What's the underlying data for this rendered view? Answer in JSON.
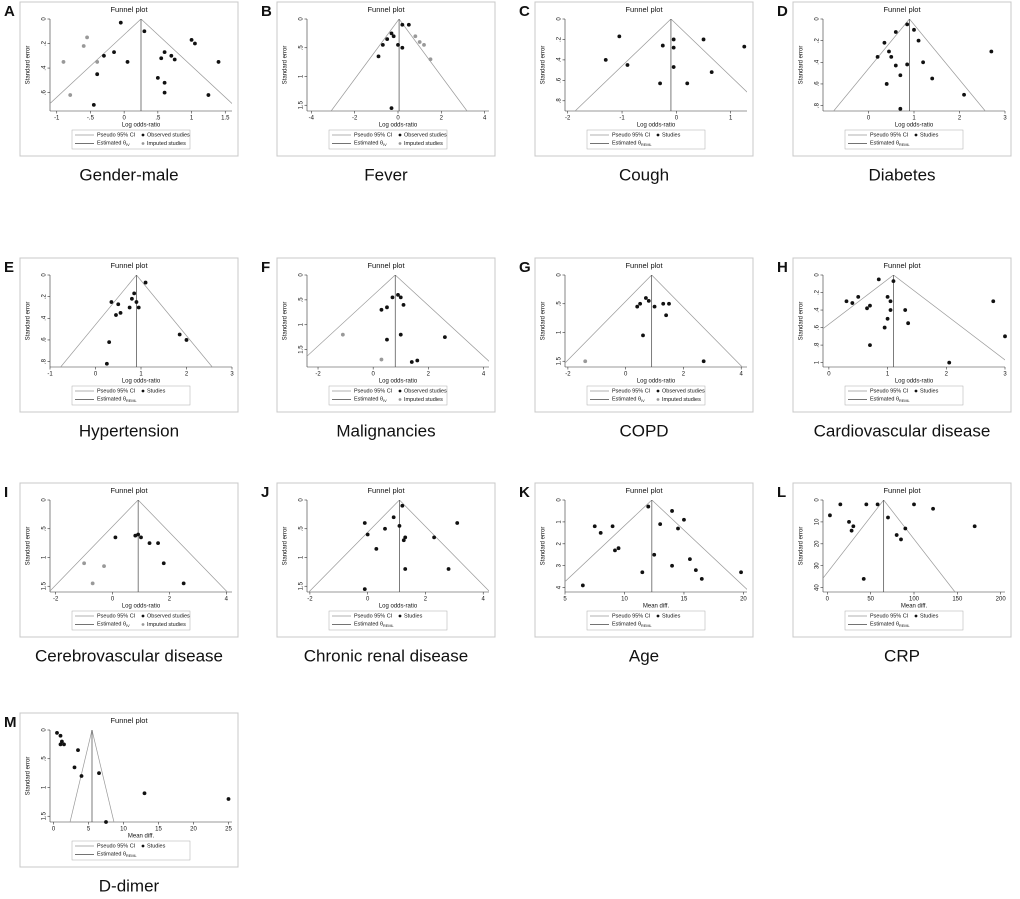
{
  "chart_data": [
    {
      "type": "scatter",
      "panel": "A",
      "caption": "Gender-male",
      "title": "Funnel plot",
      "xlabel": "Log odds-ratio",
      "ylabel": "Standard error",
      "xlim": [
        -1.1,
        1.6
      ],
      "ylim": [
        0,
        0.75
      ],
      "y_inverted": true,
      "xticks": [
        -1,
        {
          "value": -0.5,
          "label": "-.5"
        },
        0,
        {
          "value": 0.5,
          "label": ".5"
        },
        1,
        1.5
      ],
      "yticks": [
        0,
        {
          "value": 0.2,
          "label": ".2"
        },
        {
          "value": 0.4,
          "label": ".4"
        },
        {
          "value": 0.6,
          "label": ".6"
        }
      ],
      "estimate": 0.25,
      "legend": {
        "ci": "Pseudo 95% CI",
        "estimate": "Estimated θ",
        "estimate_subscript": "IV"
      },
      "series": [
        {
          "name": "Observed studies",
          "color": "#111111",
          "x": [
            -0.05,
            0.3,
            -0.15,
            -0.3,
            0.05,
            0.6,
            0.55,
            0.7,
            0.75,
            0.5,
            0.6,
            0.6,
            1.0,
            1.05,
            1.4,
            1.25,
            -0.4,
            -0.45
          ],
          "values": [
            0.03,
            0.1,
            0.27,
            0.3,
            0.35,
            0.27,
            0.32,
            0.3,
            0.33,
            0.48,
            0.52,
            0.6,
            0.17,
            0.2,
            0.35,
            0.62,
            0.45,
            0.7
          ]
        },
        {
          "name": "Imputed studies",
          "color": "#999999",
          "x": [
            -0.9,
            -0.55,
            -0.6,
            -0.4,
            -0.8
          ],
          "values": [
            0.35,
            0.15,
            0.22,
            0.35,
            0.62
          ]
        }
      ]
    },
    {
      "type": "scatter",
      "panel": "B",
      "caption": "Fever",
      "title": "Funnel plot",
      "xlabel": "Log odds-ratio",
      "ylabel": "Standard error",
      "xlim": [
        -4.2,
        4.2
      ],
      "ylim": [
        0,
        1.6
      ],
      "y_inverted": true,
      "xticks": [
        -4,
        -2,
        0,
        2,
        4
      ],
      "yticks": [
        0,
        {
          "value": 0.5,
          "label": ".5"
        },
        1,
        1.5
      ],
      "estimate": 0.05,
      "legend": {
        "ci": "Pseudo 95% CI",
        "estimate": "Estimated θ",
        "estimate_subscript": "IV"
      },
      "series": [
        {
          "name": "Observed studies",
          "color": "#111111",
          "x": [
            -0.9,
            -0.7,
            -0.5,
            -0.3,
            -0.2,
            0.2,
            0.5,
            0.0,
            0.2,
            -0.3
          ],
          "values": [
            0.65,
            0.45,
            0.35,
            0.25,
            0.3,
            0.1,
            0.1,
            0.45,
            0.5,
            1.55
          ]
        },
        {
          "name": "Imputed studies",
          "color": "#999999",
          "x": [
            0.8,
            1.0,
            1.2,
            1.5
          ],
          "values": [
            0.3,
            0.4,
            0.45,
            0.7
          ]
        }
      ]
    },
    {
      "type": "scatter",
      "panel": "C",
      "caption": "Cough",
      "title": "Funnel plot",
      "xlabel": "Log odds-ratio",
      "ylabel": "Standard error",
      "xlim": [
        -2.05,
        1.3
      ],
      "ylim": [
        0,
        0.9
      ],
      "y_inverted": true,
      "xticks": [
        -2,
        -1,
        0,
        1
      ],
      "yticks": [
        0,
        {
          "value": 0.2,
          "label": ".2"
        },
        {
          "value": 0.4,
          "label": ".4"
        },
        {
          "value": 0.6,
          "label": ".6"
        },
        {
          "value": 0.8,
          "label": ".8"
        }
      ],
      "estimate": -0.1,
      "legend": {
        "ci": "Pseudo 95% CI",
        "estimate": "Estimated θ",
        "estimate_subscript": "REML"
      },
      "series": [
        {
          "name": "Studies",
          "color": "#111111",
          "x": [
            -1.05,
            -1.3,
            -0.9,
            -0.25,
            -0.05,
            -0.05,
            0.5,
            1.25,
            -0.05,
            0.65,
            0.2,
            -0.3
          ],
          "values": [
            0.17,
            0.4,
            0.45,
            0.26,
            0.2,
            0.28,
            0.2,
            0.27,
            0.47,
            0.52,
            0.63,
            0.63
          ]
        }
      ]
    },
    {
      "type": "scatter",
      "panel": "D",
      "caption": "Diabetes",
      "title": "Funnel plot",
      "xlabel": "Log odds-ratio",
      "ylabel": "Standard error",
      "xlim": [
        -1,
        3
      ],
      "ylim": [
        0,
        0.85
      ],
      "y_inverted": true,
      "xticks": [
        0,
        1,
        2,
        3
      ],
      "yticks": [
        0,
        {
          "value": 0.2,
          "label": ".2"
        },
        {
          "value": 0.4,
          "label": ".4"
        },
        {
          "value": 0.6,
          "label": ".6"
        },
        {
          "value": 0.8,
          "label": ".8"
        }
      ],
      "estimate": 0.9,
      "legend": {
        "ci": "Pseudo 95% CI",
        "estimate": "Estimated θ",
        "estimate_subscript": "REML"
      },
      "series": [
        {
          "name": "Studies",
          "color": "#111111",
          "x": [
            0.85,
            0.6,
            1.0,
            0.35,
            0.45,
            0.5,
            0.2,
            0.6,
            0.7,
            0.85,
            0.4,
            1.2,
            1.4,
            1.1,
            2.7,
            2.1,
            0.7
          ],
          "values": [
            0.05,
            0.12,
            0.1,
            0.22,
            0.3,
            0.35,
            0.35,
            0.43,
            0.52,
            0.42,
            0.6,
            0.4,
            0.55,
            0.2,
            0.3,
            0.7,
            0.83
          ]
        }
      ]
    },
    {
      "type": "scatter",
      "panel": "E",
      "caption": "Hypertension",
      "title": "Funnel plot",
      "xlabel": "Log odds-ratio",
      "ylabel": "Standard error",
      "xlim": [
        -1,
        3
      ],
      "ylim": [
        0,
        0.85
      ],
      "y_inverted": true,
      "xticks": [
        -1,
        0,
        1,
        2,
        3
      ],
      "yticks": [
        0,
        {
          "value": 0.2,
          "label": ".2"
        },
        {
          "value": 0.4,
          "label": ".4"
        },
        {
          "value": 0.6,
          "label": ".6"
        },
        {
          "value": 0.8,
          "label": ".8"
        }
      ],
      "estimate": 0.9,
      "legend": {
        "ci": "Pseudo 95% CI",
        "estimate": "Estimated θ",
        "estimate_subscript": "REML"
      },
      "series": [
        {
          "name": "Studies",
          "color": "#111111",
          "x": [
            1.1,
            0.85,
            0.8,
            0.35,
            0.5,
            0.55,
            0.45,
            0.75,
            0.95,
            0.9,
            0.3,
            1.85,
            2.0,
            0.25
          ],
          "values": [
            0.07,
            0.17,
            0.22,
            0.25,
            0.27,
            0.35,
            0.37,
            0.3,
            0.3,
            0.25,
            0.62,
            0.55,
            0.6,
            0.82
          ]
        }
      ]
    },
    {
      "type": "scatter",
      "panel": "F",
      "caption": "Malignancies",
      "title": "Funnel plot",
      "xlabel": "Log odds-ratio",
      "ylabel": "Standard error",
      "xlim": [
        -2.4,
        4.2
      ],
      "ylim": [
        0,
        1.85
      ],
      "y_inverted": true,
      "xticks": [
        -2,
        0,
        2,
        4
      ],
      "yticks": [
        0,
        {
          "value": 0.5,
          "label": ".5"
        },
        1,
        1.5
      ],
      "estimate": 0.8,
      "legend": {
        "ci": "Pseudo 95% CI",
        "estimate": "Estimated θ",
        "estimate_subscript": "IV"
      },
      "series": [
        {
          "name": "Observed studies",
          "color": "#111111",
          "x": [
            0.3,
            0.5,
            0.7,
            0.9,
            1.0,
            1.1,
            1.0,
            0.5,
            1.4,
            1.6,
            2.6
          ],
          "values": [
            0.7,
            0.65,
            0.45,
            0.4,
            0.45,
            0.6,
            1.2,
            1.3,
            1.75,
            1.72,
            1.25
          ]
        },
        {
          "name": "Imputed studies",
          "color": "#999999",
          "x": [
            -1.1,
            0.3
          ],
          "values": [
            1.2,
            1.7
          ]
        }
      ]
    },
    {
      "type": "scatter",
      "panel": "G",
      "caption": "COPD",
      "title": "Funnel plot",
      "xlabel": "Log odds-ratio",
      "ylabel": "Standard error",
      "xlim": [
        -2.1,
        4.2
      ],
      "ylim": [
        0,
        1.6
      ],
      "y_inverted": true,
      "xticks": [
        -2,
        0,
        2,
        4
      ],
      "yticks": [
        0,
        {
          "value": 0.5,
          "label": ".5"
        },
        1,
        1.5
      ],
      "estimate": 0.9,
      "legend": {
        "ci": "Pseudo 95% CI",
        "estimate": "Estimated θ",
        "estimate_subscript": "IV"
      },
      "series": [
        {
          "name": "Observed studies",
          "color": "#111111",
          "x": [
            0.5,
            0.4,
            0.7,
            0.8,
            1.0,
            1.3,
            1.5,
            1.4,
            0.6,
            2.7
          ],
          "values": [
            0.5,
            0.55,
            0.4,
            0.45,
            0.55,
            0.5,
            0.5,
            0.7,
            1.05,
            1.5
          ]
        },
        {
          "name": "Imputed studies",
          "color": "#999999",
          "x": [
            -1.4
          ],
          "values": [
            1.5
          ]
        }
      ]
    },
    {
      "type": "scatter",
      "panel": "H",
      "caption": "Cardiovascular disease",
      "title": "Funnel plot",
      "xlabel": "Log odds-ratio",
      "ylabel": "Standard error",
      "xlim": [
        -0.1,
        3.0
      ],
      "ylim": [
        0,
        1.05
      ],
      "y_inverted": true,
      "xticks": [
        0,
        1,
        2,
        3
      ],
      "yticks": [
        0,
        {
          "value": 0.2,
          "label": ".2"
        },
        {
          "value": 0.4,
          "label": ".4"
        },
        {
          "value": 0.6,
          "label": ".6"
        },
        {
          "value": 0.8,
          "label": ".8"
        },
        1
      ],
      "estimate": 1.1,
      "legend": {
        "ci": "Pseudo 95% CI",
        "estimate": "Estimated θ",
        "estimate_subscript": "REML"
      },
      "series": [
        {
          "name": "Studies",
          "color": "#111111",
          "x": [
            0.85,
            1.1,
            0.3,
            0.4,
            0.5,
            0.7,
            0.65,
            1.0,
            1.05,
            1.05,
            1.0,
            1.3,
            1.35,
            0.95,
            0.7,
            2.05,
            2.8,
            3.0
          ],
          "values": [
            0.05,
            0.07,
            0.3,
            0.32,
            0.25,
            0.35,
            0.38,
            0.25,
            0.3,
            0.4,
            0.5,
            0.4,
            0.55,
            0.6,
            0.8,
            1.0,
            0.3,
            0.7
          ]
        }
      ]
    },
    {
      "type": "scatter",
      "panel": "I",
      "caption": "Cerebrovascular disease",
      "title": "Funnel plot",
      "xlabel": "Log odds-ratio",
      "ylabel": "Standard error",
      "xlim": [
        -2.2,
        4.2
      ],
      "ylim": [
        0,
        1.6
      ],
      "y_inverted": true,
      "xticks": [
        -2,
        0,
        2,
        4
      ],
      "yticks": [
        0,
        {
          "value": 0.5,
          "label": ".5"
        },
        1,
        1.5
      ],
      "estimate": 0.9,
      "legend": {
        "ci": "Pseudo 95% CI",
        "estimate": "Estimated θ",
        "estimate_subscript": "IV"
      },
      "series": [
        {
          "name": "Observed studies",
          "color": "#111111",
          "x": [
            0.1,
            0.8,
            0.9,
            1.0,
            1.3,
            1.6,
            1.8,
            2.5
          ],
          "values": [
            0.65,
            0.62,
            0.6,
            0.65,
            0.75,
            0.75,
            1.1,
            1.45
          ]
        },
        {
          "name": "Imputed studies",
          "color": "#999999",
          "x": [
            -1.0,
            -0.3,
            -0.7
          ],
          "values": [
            1.1,
            1.15,
            1.45
          ]
        }
      ]
    },
    {
      "type": "scatter",
      "panel": "J",
      "caption": "Chronic renal disease",
      "title": "Funnel plot",
      "xlabel": "Log odds-ratio",
      "ylabel": "Standard error",
      "xlim": [
        -2.1,
        4.2
      ],
      "ylim": [
        0,
        1.6
      ],
      "y_inverted": true,
      "xticks": [
        -2,
        0,
        2,
        4
      ],
      "yticks": [
        0,
        {
          "value": 0.5,
          "label": ".5"
        },
        1,
        1.5
      ],
      "estimate": 1.1,
      "legend": {
        "ci": "Pseudo 95% CI",
        "estimate": "Estimated θ",
        "estimate_subscript": "REML"
      },
      "series": [
        {
          "name": "Studies",
          "color": "#111111",
          "x": [
            1.2,
            0.9,
            1.1,
            1.3,
            1.25,
            0.6,
            0.3,
            0.0,
            -0.1,
            2.3,
            3.1,
            2.8,
            1.3,
            -0.1
          ],
          "values": [
            0.1,
            0.3,
            0.45,
            0.65,
            0.7,
            0.5,
            0.85,
            0.6,
            0.4,
            0.65,
            0.4,
            1.2,
            1.2,
            1.55
          ]
        }
      ]
    },
    {
      "type": "scatter",
      "panel": "K",
      "caption": "Age",
      "title": "Funnel plot",
      "xlabel": "Mean diff.",
      "ylabel": "Standard error",
      "xlim": [
        5,
        20.3
      ],
      "ylim": [
        0,
        4.2
      ],
      "y_inverted": true,
      "xticks": [
        5,
        10,
        15,
        20
      ],
      "yticks": [
        0,
        1,
        2,
        3,
        4
      ],
      "estimate": 12.3,
      "legend": {
        "ci": "Pseudo 95% CI",
        "estimate": "Estimated θ",
        "estimate_subscript": "REML"
      },
      "series": [
        {
          "name": "Studies",
          "color": "#111111",
          "x": [
            7.5,
            8,
            9,
            9.2,
            9.5,
            12,
            13,
            12.5,
            14,
            14.5,
            15,
            14,
            11.5,
            15.5,
            16,
            16.5,
            19.8,
            6.5
          ],
          "values": [
            1.2,
            1.5,
            1.2,
            2.3,
            2.2,
            0.3,
            1.1,
            2.5,
            0.5,
            1.3,
            0.9,
            3.0,
            3.3,
            2.7,
            3.2,
            3.6,
            3.3,
            3.9
          ]
        }
      ]
    },
    {
      "type": "scatter",
      "panel": "L",
      "caption": "CRP",
      "title": "Funnel plot",
      "xlabel": "Mean diff.",
      "ylabel": "Standard error",
      "xlim": [
        -5,
        205
      ],
      "ylim": [
        0,
        42
      ],
      "y_inverted": true,
      "xticks": [
        0,
        50,
        100,
        150,
        200
      ],
      "yticks": [
        0,
        10,
        20,
        30,
        40
      ],
      "estimate": 65,
      "legend": {
        "ci": "Pseudo 95% CI",
        "estimate": "Estimated θ",
        "estimate_subscript": "REML"
      },
      "series": [
        {
          "name": "Studies",
          "color": "#111111",
          "x": [
            15,
            3,
            25,
            30,
            28,
            45,
            58,
            70,
            80,
            85,
            90,
            100,
            122,
            170,
            42
          ],
          "values": [
            2,
            7,
            10,
            12,
            14,
            2,
            2,
            8,
            16,
            18,
            13,
            2,
            4,
            12,
            36
          ]
        }
      ]
    },
    {
      "type": "scatter",
      "panel": "M",
      "caption": "D-dimer",
      "title": "Funnel plot",
      "xlabel": "Mean diff.",
      "ylabel": "Standard error",
      "xlim": [
        -0.5,
        25.5
      ],
      "ylim": [
        0,
        1.6
      ],
      "y_inverted": true,
      "xticks": [
        0,
        5,
        10,
        15,
        20,
        25
      ],
      "yticks": [
        0,
        {
          "value": 0.5,
          "label": ".5"
        },
        1,
        1.5
      ],
      "estimate": 5.5,
      "legend": {
        "ci": "Pseudo 95% CI",
        "estimate": "Estimated θ",
        "estimate_subscript": "REML"
      },
      "series": [
        {
          "name": "Studies",
          "color": "#111111",
          "x": [
            0.5,
            1,
            1.2,
            1,
            1.5,
            3.5,
            3,
            4,
            6.5,
            7.5,
            13,
            25
          ],
          "values": [
            0.05,
            0.1,
            0.2,
            0.25,
            0.25,
            0.35,
            0.65,
            0.8,
            0.75,
            1.6,
            1.1,
            1.2
          ]
        }
      ]
    }
  ]
}
